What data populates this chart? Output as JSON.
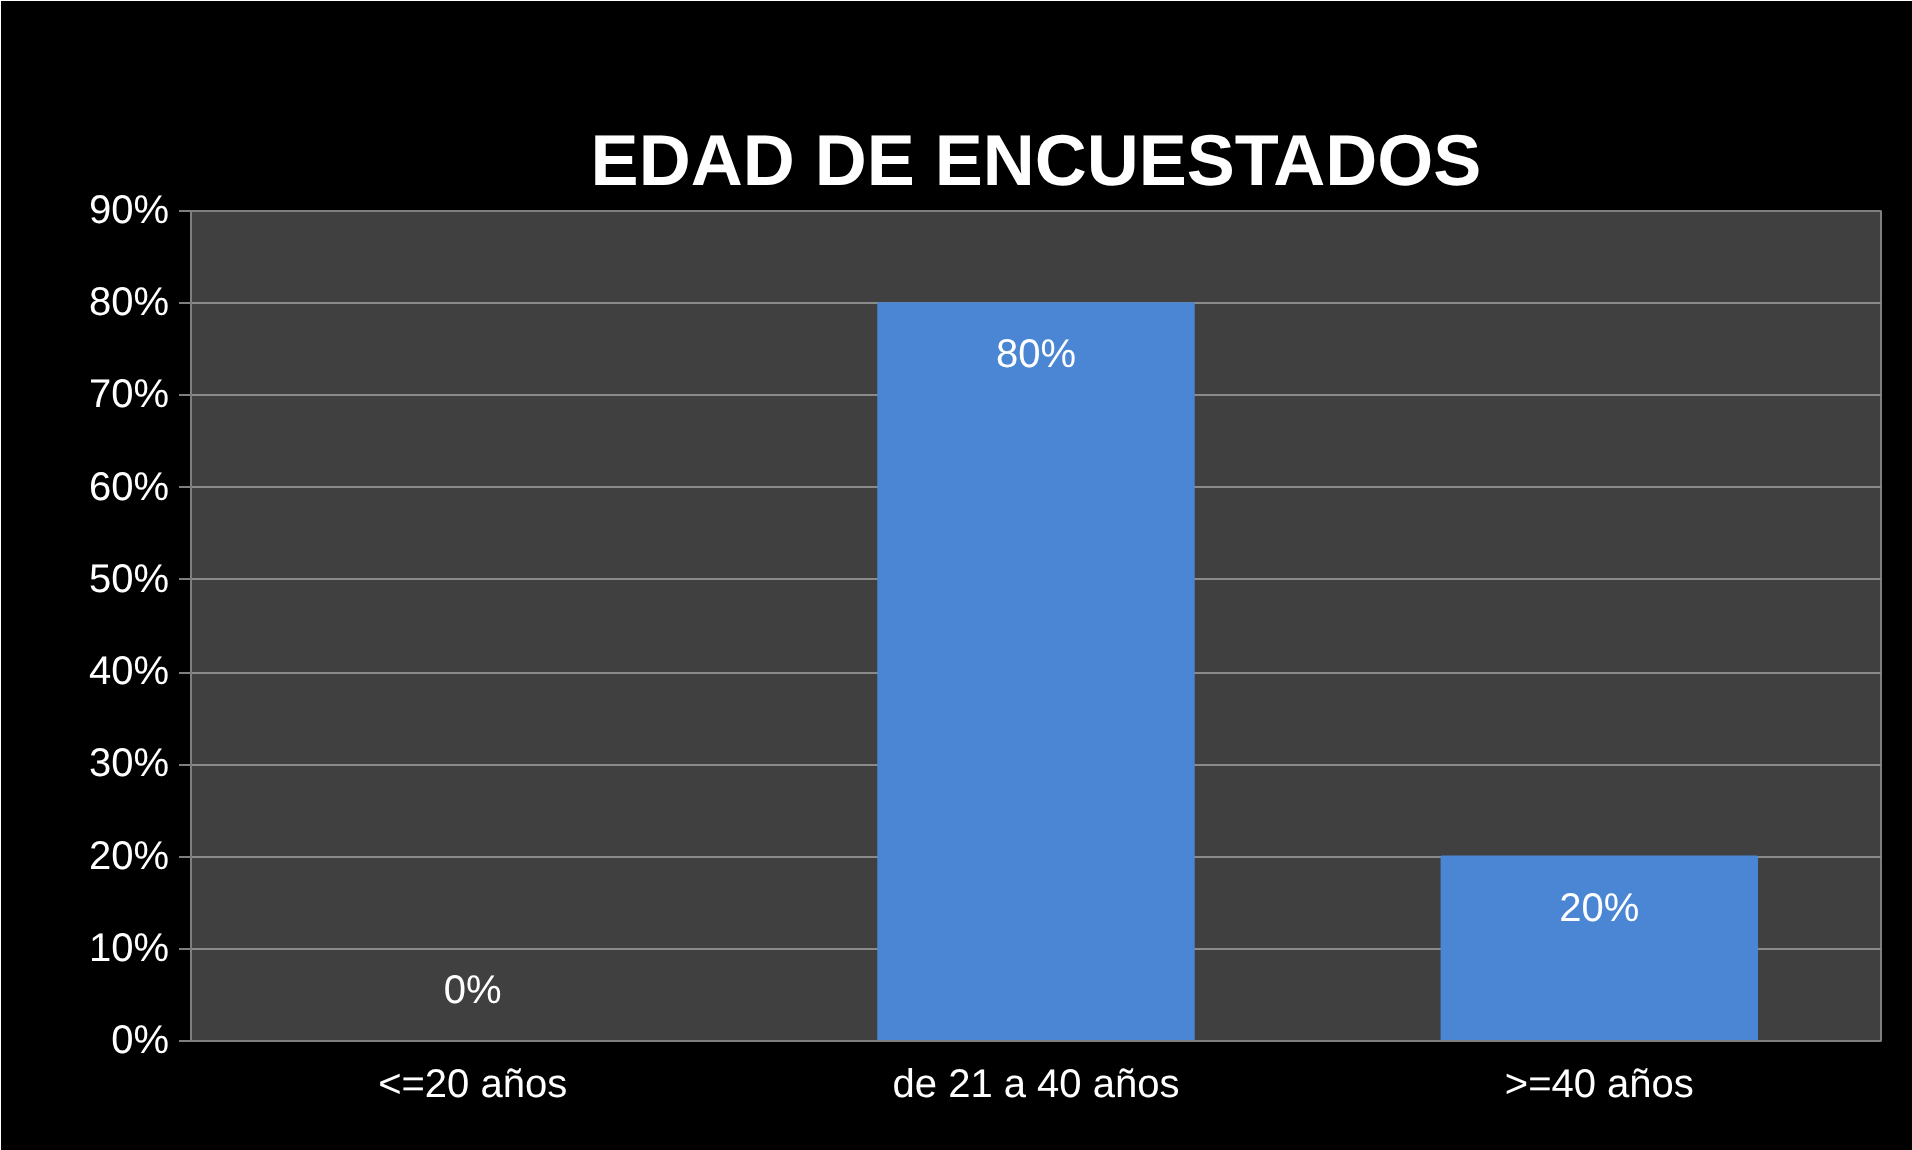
{
  "chart_data": {
    "type": "bar",
    "title": "EDAD DE ENCUESTADOS",
    "categories": [
      "<=20 años",
      "de 21 a 40 años",
      ">=40 años"
    ],
    "values": [
      0,
      80,
      20
    ],
    "color": "#4a86d4",
    "value_labels": [
      "0%",
      "80%",
      "20%"
    ],
    "ylim": [
      0,
      90
    ],
    "yticks": [
      {
        "value": 0,
        "label": "0%"
      },
      {
        "value": 10,
        "label": "10%"
      },
      {
        "value": 20,
        "label": "20%"
      },
      {
        "value": 30,
        "label": "30%"
      },
      {
        "value": 40,
        "label": "40%"
      },
      {
        "value": 50,
        "label": "50%"
      },
      {
        "value": 60,
        "label": "60%"
      },
      {
        "value": 70,
        "label": "70%"
      },
      {
        "value": 80,
        "label": "80%"
      },
      {
        "value": 90,
        "label": "90%"
      }
    ],
    "grid": "y"
  }
}
